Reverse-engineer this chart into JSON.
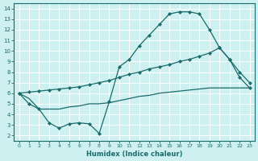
{
  "xlabel": "Humidex (Indice chaleur)",
  "bg_color": "#cef0f0",
  "grid_color": "#ffffff",
  "line_color": "#1a6b6b",
  "xlim": [
    -0.5,
    23.5
  ],
  "ylim": [
    1.5,
    14.5
  ],
  "xticks": [
    0,
    1,
    2,
    3,
    4,
    5,
    6,
    7,
    8,
    9,
    10,
    11,
    12,
    13,
    14,
    15,
    16,
    17,
    18,
    19,
    20,
    21,
    22,
    23
  ],
  "yticks": [
    2,
    3,
    4,
    5,
    6,
    7,
    8,
    9,
    10,
    11,
    12,
    13,
    14
  ],
  "curve_top_markers": {
    "x": [
      0,
      1,
      2,
      3,
      4,
      5,
      6,
      7,
      8,
      9,
      10,
      11,
      12,
      13,
      14,
      15,
      16,
      17,
      18,
      19,
      20,
      21,
      22,
      23
    ],
    "y": [
      6.0,
      5.0,
      4.5,
      3.2,
      2.7,
      3.1,
      3.2,
      3.1,
      2.2,
      5.2,
      8.5,
      9.2,
      10.5,
      11.5,
      12.5,
      13.5,
      13.7,
      13.7,
      13.5,
      12.0,
      10.3,
      9.2,
      7.5,
      6.5
    ]
  },
  "curve_mid_linear": {
    "x": [
      0,
      1,
      2,
      3,
      4,
      5,
      6,
      7,
      8,
      9,
      10,
      11,
      12,
      13,
      14,
      15,
      16,
      17,
      18,
      19,
      20,
      21,
      22,
      23
    ],
    "y": [
      6.0,
      6.1,
      6.2,
      6.3,
      6.4,
      6.5,
      6.6,
      6.8,
      7.0,
      7.2,
      7.5,
      7.8,
      8.0,
      8.3,
      8.5,
      8.7,
      9.0,
      9.2,
      9.5,
      9.8,
      10.3,
      9.2,
      8.0,
      7.0
    ]
  },
  "curve_bot_flat": {
    "x": [
      0,
      1,
      2,
      3,
      4,
      5,
      6,
      7,
      8,
      9,
      10,
      11,
      12,
      13,
      14,
      15,
      16,
      17,
      18,
      19,
      20,
      21,
      22,
      23
    ],
    "y": [
      6.0,
      5.5,
      4.5,
      4.5,
      4.5,
      4.7,
      4.8,
      5.0,
      5.0,
      5.1,
      5.3,
      5.5,
      5.7,
      5.8,
      6.0,
      6.1,
      6.2,
      6.3,
      6.4,
      6.5,
      6.5,
      6.5,
      6.5,
      6.5
    ]
  }
}
